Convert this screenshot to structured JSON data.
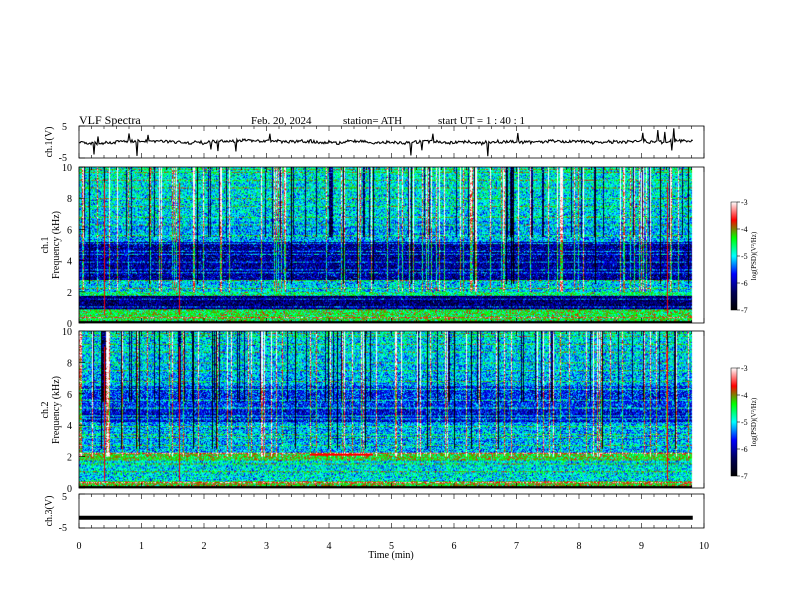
{
  "header": {
    "title": "VLF  Spectra",
    "date": "Feb. 20, 2024",
    "station": "station= ATH",
    "start": "start  UT  =   1  : 40 : 1"
  },
  "colorbar": {
    "label": "log(PSD)(V²/Hz)",
    "ticks": [
      "-3",
      "-4",
      "-5",
      "-6",
      "-7"
    ],
    "colors": [
      "#ffffff",
      "#ff0000",
      "#00ff00",
      "#00ffff",
      "#0000ff",
      "#00005a",
      "#000000"
    ]
  },
  "chart_data": [
    {
      "type": "line",
      "panel": "ch1-waveform",
      "ylabel": "ch.1(V)",
      "yticks": [
        "5",
        "-5"
      ],
      "ylim": [
        -5,
        5
      ],
      "xlim": [
        0,
        10
      ],
      "signal_level": 0,
      "color": "#000000"
    },
    {
      "type": "heatmap",
      "panel": "ch1-spectrogram",
      "ylabel": "ch.1\nFrequency  (kHz)",
      "yticks": [
        "0",
        "2",
        "4",
        "6",
        "8",
        "10"
      ],
      "ylim": [
        0,
        10
      ],
      "xlim": [
        0,
        10
      ],
      "zlim": [
        -7,
        -3
      ],
      "zlabel": "log(PSD)(V²/Hz)"
    },
    {
      "type": "heatmap",
      "panel": "ch2-spectrogram",
      "ylabel": "ch.2\nFrequency  (kHz)",
      "yticks": [
        "0",
        "2",
        "4",
        "6",
        "8",
        "10"
      ],
      "ylim": [
        0,
        10
      ],
      "xlim": [
        0,
        10
      ],
      "zlim": [
        -7,
        -3
      ],
      "zlabel": "log(PSD)(V²/Hz)"
    },
    {
      "type": "line",
      "panel": "ch3-waveform",
      "ylabel": "ch.3(V)",
      "yticks": [
        "5",
        "-5"
      ],
      "ylim": [
        -5,
        5
      ],
      "xlim": [
        0,
        10
      ],
      "signal_level": -2,
      "color": "#000000"
    }
  ],
  "xaxis": {
    "label": "Time  (min)",
    "ticks": [
      "0",
      "1",
      "2",
      "3",
      "4",
      "5",
      "6",
      "7",
      "8",
      "9",
      "10"
    ]
  }
}
